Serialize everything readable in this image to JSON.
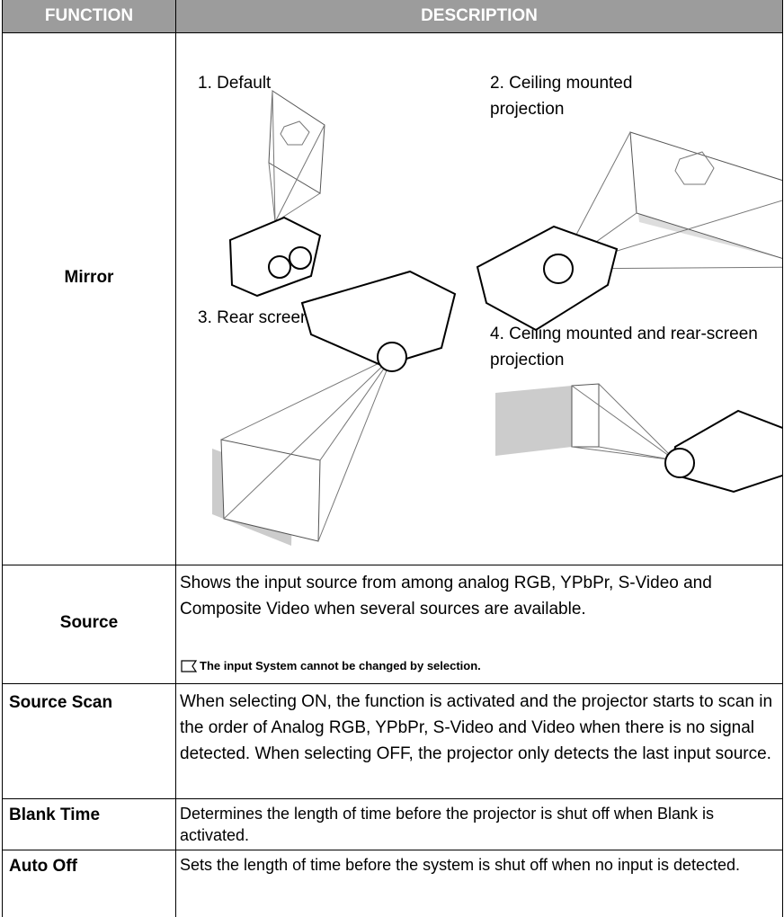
{
  "header": {
    "function": "FUNCTION",
    "description": "DESCRIPTION"
  },
  "rows": [
    {
      "function": "Mirror",
      "options": [
        "1. Default",
        "2. Ceiling mounted projection",
        "3. Rear screen projection",
        "4. Ceiling mounted and rear-screen projection"
      ]
    },
    {
      "function": "Source",
      "description": "Shows the input source from among analog RGB, YPbPr, S-Video and Composite Video when several sources are available.",
      "note": "The input System cannot be changed by selection."
    },
    {
      "function": "Source Scan",
      "description": "When selecting ON, the function is activated and the projector starts to scan in the order of Analog RGB, YPbPr, S-Video and Video when there is no signal detected. When selecting OFF, the projector only detects the last input source."
    },
    {
      "function": "Blank Time",
      "description": "Determines the length of time before the projector is shut off when Blank is activated."
    },
    {
      "function": "Auto Off",
      "description": "Sets the length of time before the system is shut off when no input is detected."
    }
  ]
}
